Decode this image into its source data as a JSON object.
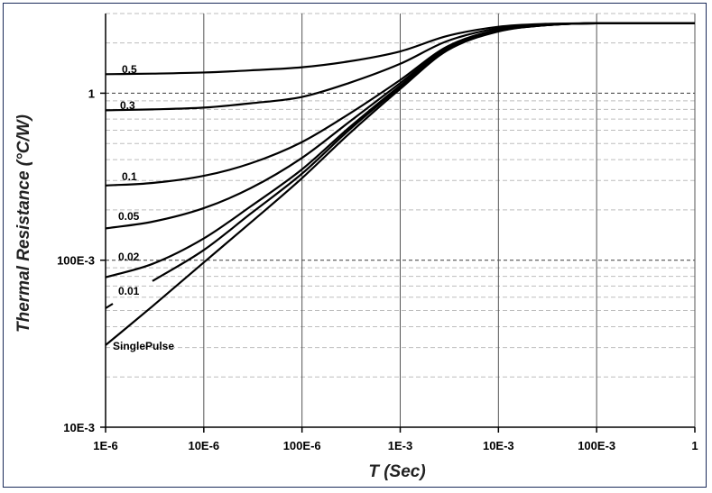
{
  "chart_data": {
    "type": "line",
    "title": "",
    "xlabel": "T (Sec)",
    "ylabel": "Thermal Resistance (°C/W)",
    "xscale": "log",
    "yscale": "log",
    "xlim": [
      1e-06,
      1
    ],
    "ylim": [
      0.01,
      3
    ],
    "x_tick_values": [
      1e-06,
      1e-05,
      0.0001,
      0.001,
      0.01,
      0.1,
      1
    ],
    "x_tick_labels": [
      "1E-6",
      "10E-6",
      "100E-6",
      "1E-3",
      "10E-3",
      "100E-3",
      "1"
    ],
    "y_tick_values": [
      0.01,
      0.1,
      1
    ],
    "y_tick_labels": [
      "10E-3",
      "100E-3",
      "1"
    ],
    "grid": true,
    "legend": "inline",
    "series": [
      {
        "name": "0.5",
        "label": "0.5",
        "x": [
          1e-06,
          3e-06,
          1e-05,
          3e-05,
          0.0001,
          0.0003,
          0.001,
          0.003,
          0.01,
          0.03,
          0.1,
          1
        ],
        "values": [
          1.3,
          1.31,
          1.33,
          1.37,
          1.43,
          1.55,
          1.78,
          2.2,
          2.5,
          2.6,
          2.62,
          2.62
        ]
      },
      {
        "name": "0.3",
        "label": "0.3",
        "x": [
          1e-06,
          3e-06,
          1e-05,
          3e-05,
          0.0001,
          0.0003,
          0.001,
          0.003,
          0.01,
          0.03,
          0.1,
          1
        ],
        "values": [
          0.79,
          0.8,
          0.82,
          0.87,
          0.95,
          1.15,
          1.5,
          2.05,
          2.45,
          2.58,
          2.62,
          2.62
        ]
      },
      {
        "name": "0.1",
        "label": "0.1",
        "x": [
          1e-06,
          3e-06,
          1e-05,
          3e-05,
          0.0001,
          0.0003,
          0.001,
          0.003,
          0.01,
          0.03,
          0.1,
          1
        ],
        "values": [
          0.28,
          0.29,
          0.32,
          0.38,
          0.51,
          0.75,
          1.2,
          1.9,
          2.4,
          2.56,
          2.62,
          2.62
        ]
      },
      {
        "name": "0.05",
        "label": "0.05",
        "x": [
          1e-06,
          3e-06,
          1e-05,
          3e-05,
          0.0001,
          0.0003,
          0.001,
          0.003,
          0.01,
          0.03,
          0.1,
          1
        ],
        "values": [
          0.155,
          0.17,
          0.205,
          0.27,
          0.41,
          0.67,
          1.15,
          1.86,
          2.38,
          2.56,
          2.62,
          2.62
        ]
      },
      {
        "name": "0.02",
        "label": "0.02",
        "x": [
          1e-06,
          3e-06,
          1e-05,
          3e-05,
          0.0001,
          0.0003,
          0.001,
          0.003,
          0.01,
          0.03,
          0.1,
          1
        ],
        "values": [
          0.079,
          0.095,
          0.135,
          0.21,
          0.35,
          0.62,
          1.11,
          1.83,
          2.36,
          2.55,
          2.62,
          2.62
        ]
      },
      {
        "name": "0.01",
        "label": "0.01",
        "x": [
          3e-06,
          1e-05,
          3e-05,
          0.0001,
          0.0003,
          0.001,
          0.003,
          0.01,
          0.03,
          0.1,
          1
        ],
        "values": [
          0.075,
          0.115,
          0.19,
          0.33,
          0.6,
          1.09,
          1.82,
          2.35,
          2.55,
          2.62,
          2.62
        ]
      },
      {
        "name": "SinglePulse",
        "label": "SinglePulse",
        "x": [
          1e-06,
          3e-06,
          1e-05,
          3e-05,
          0.0001,
          0.0003,
          0.001,
          0.003,
          0.01,
          0.03,
          0.1,
          1
        ],
        "values": [
          0.031,
          0.053,
          0.097,
          0.168,
          0.31,
          0.57,
          1.06,
          1.8,
          2.34,
          2.55,
          2.62,
          2.62
        ]
      }
    ]
  }
}
